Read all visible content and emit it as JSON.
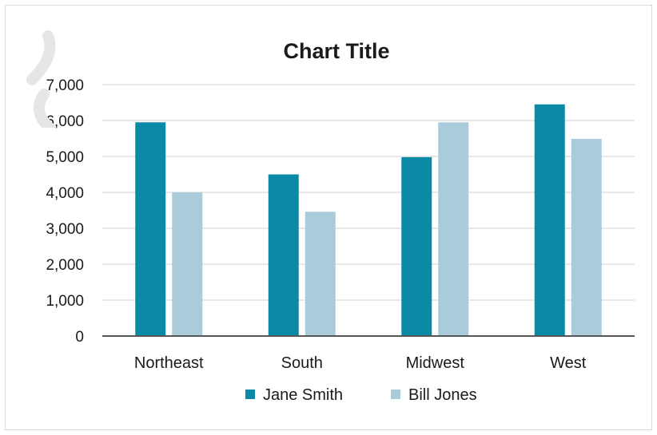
{
  "chart_data": {
    "type": "bar",
    "title": "Chart Title",
    "categories": [
      "Northeast",
      "South",
      "Midwest",
      "West"
    ],
    "series": [
      {
        "name": "Jane Smith",
        "values": [
          5950,
          4500,
          4980,
          6450
        ],
        "color": "#0a8aa6"
      },
      {
        "name": "Bill Jones",
        "values": [
          4000,
          3460,
          5950,
          5490
        ],
        "color": "#a9cbda"
      }
    ],
    "ylim": [
      0,
      7000
    ],
    "yticks": [
      "0",
      "1,000",
      "2,000",
      "3,000",
      "4,000",
      "5,000",
      "6,000",
      "7,000"
    ],
    "grid": true,
    "legend": "bottom"
  }
}
